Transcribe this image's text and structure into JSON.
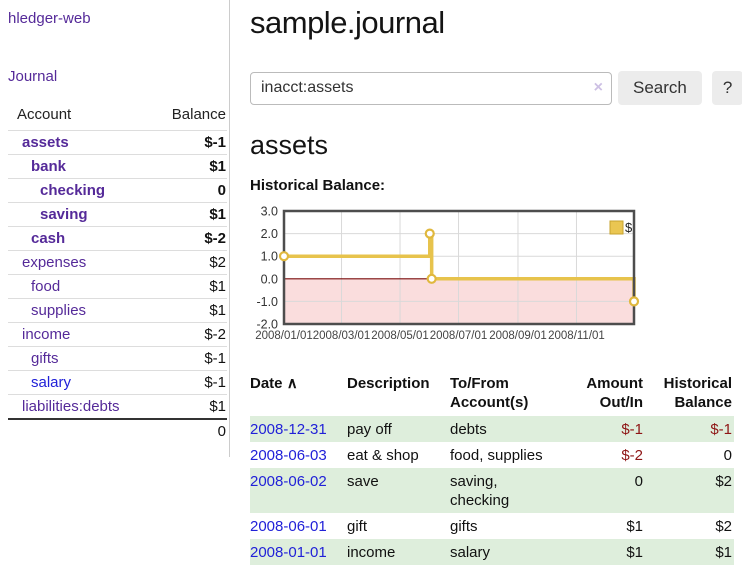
{
  "sidebar": {
    "app_title": "hledger-web",
    "journal_link": "Journal",
    "headers": {
      "account": "Account",
      "balance": "Balance"
    },
    "accounts": [
      {
        "name": "assets",
        "balance": "$-1"
      },
      {
        "name": "bank",
        "balance": "$1"
      },
      {
        "name": "checking",
        "balance": "0"
      },
      {
        "name": "saving",
        "balance": "$1"
      },
      {
        "name": "cash",
        "balance": "$-2"
      },
      {
        "name": "expenses",
        "balance": "$2"
      },
      {
        "name": "food",
        "balance": "$1"
      },
      {
        "name": "supplies",
        "balance": "$1"
      },
      {
        "name": "income",
        "balance": "$-2"
      },
      {
        "name": "gifts",
        "balance": "$-1"
      },
      {
        "name": "salary",
        "balance": "$-1"
      },
      {
        "name": "liabilities:debts",
        "balance": "$1"
      }
    ],
    "total": "0"
  },
  "main": {
    "title": "sample.journal",
    "search": {
      "value": "inacct:assets",
      "clear_icon": "×",
      "search_button": "Search",
      "help_button": "?"
    },
    "account_heading": "assets",
    "chart_heading": "Historical Balance:"
  },
  "chart_data": {
    "type": "line",
    "step": "post",
    "title": "Historical Balance:",
    "legend": {
      "position": "top-right",
      "label": "$"
    },
    "grid": true,
    "line_color": "#e7c34c",
    "marker_fill": "#ffffff",
    "negative_region_color": "#fadddd",
    "zero_line_color": "#7a0c0c",
    "x_axis": {
      "range_days": [
        0,
        365
      ],
      "ticks": [
        {
          "day": 0,
          "label": "2008/01/01"
        },
        {
          "day": 60,
          "label": "2008/03/01"
        },
        {
          "day": 121,
          "label": "2008/05/01"
        },
        {
          "day": 182,
          "label": "2008/07/01"
        },
        {
          "day": 244,
          "label": "2008/09/01"
        },
        {
          "day": 305,
          "label": "2008/11/01"
        }
      ]
    },
    "y_axis": {
      "range": [
        -2,
        3
      ],
      "ticks": [
        3.0,
        2.0,
        1.0,
        0.0,
        -1.0,
        -2.0
      ]
    },
    "series": [
      {
        "name": "$",
        "points": [
          {
            "date": "2008-01-01",
            "day": 0,
            "value": 1
          },
          {
            "date": "2008-06-01",
            "day": 152,
            "value": 2
          },
          {
            "date": "2008-06-03",
            "day": 154,
            "value": 0
          },
          {
            "date": "2008-12-31",
            "day": 365,
            "value": -1
          }
        ]
      }
    ]
  },
  "journal": {
    "headers": {
      "date": "Date",
      "sort_indicator": "∧",
      "description": "Description",
      "accounts": "To/From Account(s)",
      "amount": "Amount Out/In",
      "balance": "Historical Balance"
    },
    "rows": [
      {
        "date": "2008-12-31",
        "description": "pay off",
        "accounts": "debts",
        "amount": "$-1",
        "balance": "$-1"
      },
      {
        "date": "2008-06-03",
        "description": "eat & shop",
        "accounts": "food, supplies",
        "amount": "$-2",
        "balance": "0"
      },
      {
        "date": "2008-06-02",
        "description": "save",
        "accounts": "saving, checking",
        "amount": "0",
        "balance": "$2"
      },
      {
        "date": "2008-06-01",
        "description": "gift",
        "accounts": "gifts",
        "amount": "$1",
        "balance": "$2"
      },
      {
        "date": "2008-01-01",
        "description": "income",
        "accounts": "salary",
        "amount": "$1",
        "balance": "$1"
      }
    ]
  },
  "colors": {
    "link_purple": "#552a99",
    "link_blue": "#2121d8",
    "negative_strong": "#8e1515",
    "negative_soft": "#b56a6a",
    "row_stripe_green": "#deeedc",
    "chart_line_gold": "#e7c34c",
    "chart_negative_pink": "#fadddd"
  }
}
